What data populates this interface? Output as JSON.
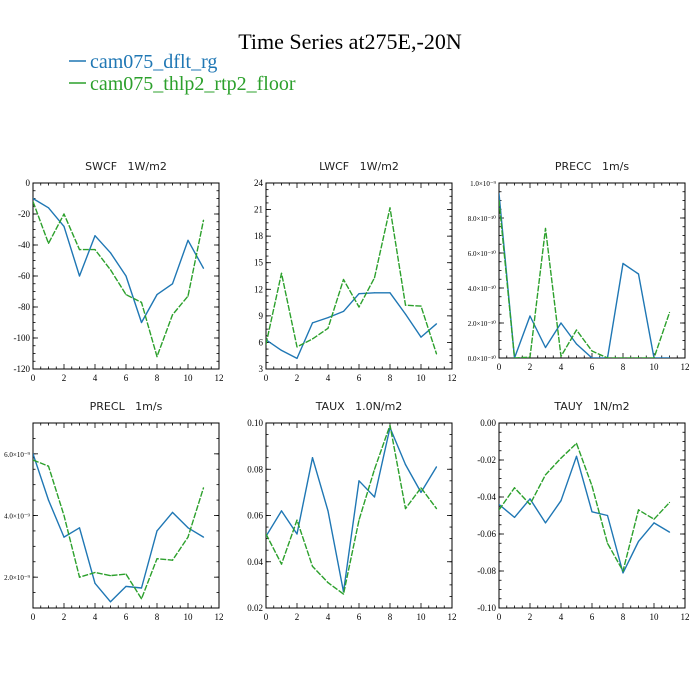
{
  "figure": {
    "title": "Time Series at275E,-20N",
    "legend": [
      {
        "name": "cam075_dflt_rg",
        "color": "#1f77b4"
      },
      {
        "name": "cam075_thlp2_rtp2_floor",
        "color": "#2ca02c"
      }
    ]
  },
  "chart_data": [
    {
      "type": "line",
      "title": "SWCF   1W/m2",
      "x": [
        0,
        1,
        2,
        3,
        4,
        5,
        6,
        7,
        8,
        9,
        10,
        11
      ],
      "xlim": [
        0,
        12
      ],
      "ylim": [
        -120,
        0
      ],
      "xticks": [
        0,
        2,
        4,
        6,
        8,
        10,
        12
      ],
      "yticks": [
        -120,
        -100,
        -80,
        -60,
        -40,
        -20,
        0
      ],
      "ytick_labels": [
        "-120",
        "-100",
        "-80",
        "-60",
        "-40",
        "-20",
        "0"
      ],
      "series": [
        {
          "name": "cam075_dflt_rg",
          "values": [
            -10,
            -16,
            -28,
            -60,
            -34,
            -45,
            -60,
            -90,
            -72,
            -65,
            -37,
            -55
          ]
        },
        {
          "name": "cam075_thlp2_rtp2_floor",
          "values": [
            -12,
            -39,
            -20,
            -43,
            -43,
            -56,
            -72,
            -77,
            -112,
            -85,
            -73,
            -24
          ]
        }
      ]
    },
    {
      "type": "line",
      "title": "LWCF   1W/m2",
      "x": [
        0,
        1,
        2,
        3,
        4,
        5,
        6,
        7,
        8,
        9,
        10,
        11
      ],
      "xlim": [
        0,
        12
      ],
      "ylim": [
        3,
        24
      ],
      "xticks": [
        0,
        2,
        4,
        6,
        8,
        10,
        12
      ],
      "yticks": [
        3,
        6,
        9,
        12,
        15,
        18,
        21,
        24
      ],
      "ytick_labels": [
        "3",
        "6",
        "9",
        "12",
        "15",
        "18",
        "21",
        "24"
      ],
      "series": [
        {
          "name": "cam075_dflt_rg",
          "values": [
            6.3,
            5.1,
            4.2,
            8.2,
            8.8,
            9.5,
            11.5,
            11.6,
            11.6,
            9.2,
            6.6,
            8.1
          ]
        },
        {
          "name": "cam075_thlp2_rtp2_floor",
          "values": [
            5.8,
            13.8,
            5.5,
            6.4,
            7.6,
            13.1,
            10.0,
            13.3,
            21.2,
            10.2,
            10.1,
            4.7
          ]
        }
      ]
    },
    {
      "type": "line",
      "title": "PRECC   1m/s",
      "x": [
        0,
        1,
        2,
        3,
        4,
        5,
        6,
        7,
        8,
        9,
        10,
        11
      ],
      "xlim": [
        0,
        12
      ],
      "ylim": [
        0,
        1e-09
      ],
      "xticks": [
        0,
        2,
        4,
        6,
        8,
        10,
        12
      ],
      "yticks": [
        0,
        2e-10,
        4e-10,
        6e-10,
        8e-10,
        1e-09
      ],
      "ytick_labels": [
        "0.0×10⁻¹⁰",
        "2.0×10⁻¹⁰",
        "4.0×10⁻¹⁰",
        "6.0×10⁻¹⁰",
        "8.0×10⁻¹⁰",
        "1.0×10⁻⁹"
      ],
      "series": [
        {
          "name": "cam075_dflt_rg",
          "values": [
            9.4e-10,
            0,
            2.4e-10,
            6e-11,
            2e-10,
            8e-11,
            0,
            0,
            5.4e-10,
            4.8e-10,
            0,
            0
          ]
        },
        {
          "name": "cam075_thlp2_rtp2_floor",
          "values": [
            9e-10,
            0,
            5e-12,
            7.4e-10,
            1e-11,
            1.6e-10,
            4e-11,
            0,
            0,
            0,
            0,
            2.6e-10
          ]
        }
      ]
    },
    {
      "type": "line",
      "title": "PRECL   1m/s",
      "x": [
        0,
        1,
        2,
        3,
        4,
        5,
        6,
        7,
        8,
        9,
        10,
        11
      ],
      "xlim": [
        0,
        12
      ],
      "ylim": [
        1e-09,
        7e-09
      ],
      "xticks": [
        0,
        2,
        4,
        6,
        8,
        10,
        12
      ],
      "yticks": [
        2e-09,
        4e-09,
        6e-09
      ],
      "ytick_labels": [
        "2.0×10⁻⁹",
        "4.0×10⁻⁹",
        "6.0×10⁻⁹"
      ],
      "series": [
        {
          "name": "cam075_dflt_rg",
          "values": [
            6e-09,
            4.5e-09,
            3.3e-09,
            3.6e-09,
            1.8e-09,
            1.2e-09,
            1.7e-09,
            1.65e-09,
            3.5e-09,
            4.1e-09,
            3.6e-09,
            3.3e-09
          ]
        },
        {
          "name": "cam075_thlp2_rtp2_floor",
          "values": [
            5.8e-09,
            5.6e-09,
            4e-09,
            2e-09,
            2.15e-09,
            2.05e-09,
            2.1e-09,
            1.3e-09,
            2.6e-09,
            2.55e-09,
            3.3e-09,
            4.9e-09
          ]
        }
      ]
    },
    {
      "type": "line",
      "title": "TAUX   1.0N/m2",
      "x": [
        0,
        1,
        2,
        3,
        4,
        5,
        6,
        7,
        8,
        9,
        10,
        11
      ],
      "xlim": [
        0,
        12
      ],
      "ylim": [
        0.02,
        0.1
      ],
      "xticks": [
        0,
        2,
        4,
        6,
        8,
        10,
        12
      ],
      "yticks": [
        0.02,
        0.04,
        0.06,
        0.08,
        0.1
      ],
      "ytick_labels": [
        "0.02",
        "0.04",
        "0.06",
        "0.08",
        "0.10"
      ],
      "series": [
        {
          "name": "cam075_dflt_rg",
          "values": [
            0.051,
            0.062,
            0.052,
            0.085,
            0.062,
            0.027,
            0.075,
            0.068,
            0.098,
            0.082,
            0.07,
            0.081
          ]
        },
        {
          "name": "cam075_thlp2_rtp2_floor",
          "values": [
            0.052,
            0.039,
            0.058,
            0.038,
            0.031,
            0.026,
            0.058,
            0.08,
            0.099,
            0.063,
            0.072,
            0.063
          ]
        }
      ]
    },
    {
      "type": "line",
      "title": "TAUY   1N/m2",
      "x": [
        0,
        1,
        2,
        3,
        4,
        5,
        6,
        7,
        8,
        9,
        10,
        11
      ],
      "xlim": [
        0,
        12
      ],
      "ylim": [
        -0.1,
        0.0
      ],
      "xticks": [
        0,
        2,
        4,
        6,
        8,
        10,
        12
      ],
      "yticks": [
        -0.1,
        -0.08,
        -0.06,
        -0.04,
        -0.02,
        0.0
      ],
      "ytick_labels": [
        "-0.10",
        "-0.08",
        "-0.06",
        "-0.04",
        "-0.02",
        "0.00"
      ],
      "series": [
        {
          "name": "cam075_dflt_rg",
          "values": [
            -0.044,
            -0.051,
            -0.041,
            -0.054,
            -0.042,
            -0.018,
            -0.048,
            -0.05,
            -0.081,
            -0.064,
            -0.054,
            -0.059
          ]
        },
        {
          "name": "cam075_thlp2_rtp2_floor",
          "values": [
            -0.047,
            -0.035,
            -0.044,
            -0.028,
            -0.019,
            -0.011,
            -0.034,
            -0.065,
            -0.08,
            -0.047,
            -0.052,
            -0.043
          ]
        }
      ]
    }
  ]
}
